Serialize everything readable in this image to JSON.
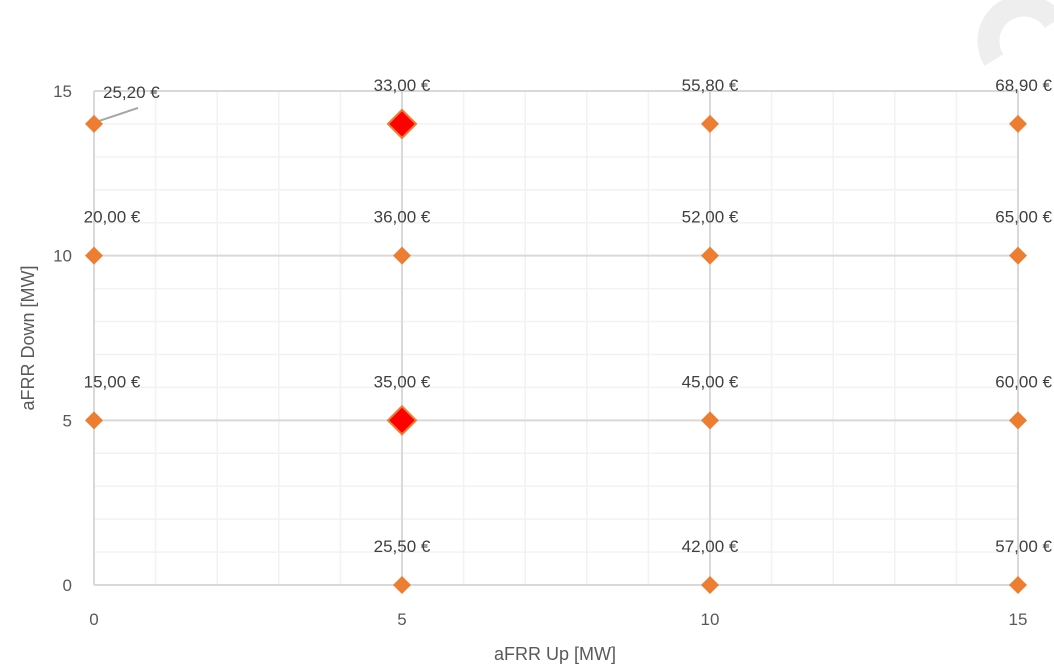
{
  "chart_data": {
    "type": "scatter",
    "title": "",
    "xlabel": "aFRR Up [MW]",
    "ylabel": "aFRR Down [MW]",
    "xlim": [
      0,
      15
    ],
    "ylim": [
      0,
      15
    ],
    "x_ticks": [
      0,
      5,
      10,
      15
    ],
    "y_ticks": [
      0,
      5,
      10,
      15
    ],
    "grid": true,
    "minor_grid": true,
    "colors": {
      "marker": "#ED7D31",
      "highlight": "#FF0000",
      "grid": "#D9D9D9",
      "minor_grid": "#F2F2F2"
    },
    "points": [
      {
        "x": 0,
        "y": 14,
        "label": "25,20 €",
        "highlight": false
      },
      {
        "x": 5,
        "y": 14,
        "label": "33,00 €",
        "highlight": true
      },
      {
        "x": 10,
        "y": 14,
        "label": "55,80 €",
        "highlight": false
      },
      {
        "x": 15,
        "y": 14,
        "label": "68,90 €",
        "highlight": false
      },
      {
        "x": 0,
        "y": 10,
        "label": "20,00 €",
        "highlight": false
      },
      {
        "x": 5,
        "y": 10,
        "label": "36,00 €",
        "highlight": false
      },
      {
        "x": 10,
        "y": 10,
        "label": "52,00 €",
        "highlight": false
      },
      {
        "x": 15,
        "y": 10,
        "label": "65,00 €",
        "highlight": false
      },
      {
        "x": 0,
        "y": 5,
        "label": "15,00 €",
        "highlight": false
      },
      {
        "x": 5,
        "y": 5,
        "label": "35,00 €",
        "highlight": true
      },
      {
        "x": 10,
        "y": 5,
        "label": "45,00 €",
        "highlight": false
      },
      {
        "x": 15,
        "y": 5,
        "label": "60,00 €",
        "highlight": false
      },
      {
        "x": 5,
        "y": 0,
        "label": "25,50 €",
        "highlight": false
      },
      {
        "x": 10,
        "y": 0,
        "label": "42,00 €",
        "highlight": false
      },
      {
        "x": 15,
        "y": 0,
        "label": "57,00 €",
        "highlight": false
      }
    ]
  }
}
